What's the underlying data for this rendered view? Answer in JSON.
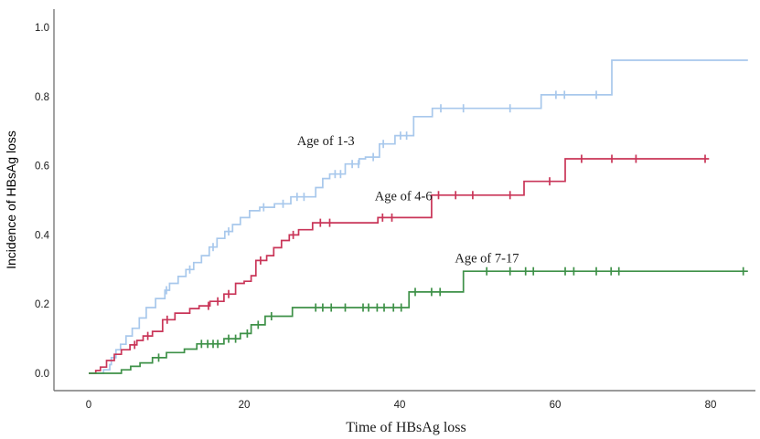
{
  "page": {
    "background": "#ffffff"
  },
  "chart_data": {
    "type": "line",
    "subtype": "kaplan_meier_step_cumulative_incidence",
    "title": "",
    "xlabel": "Time of HBsAg loss",
    "ylabel": "Incidence of HBsAg loss",
    "xlim": [
      -4.5,
      86
    ],
    "ylim": [
      -0.05,
      1.05
    ],
    "x_ticks": [
      0,
      20,
      40,
      60,
      80
    ],
    "y_ticks": [
      0.0,
      0.2,
      0.4,
      0.6,
      0.8,
      1.0
    ],
    "grid": false,
    "legend_position": "inline annotations beside curves",
    "axis_color": "#7a7a7a",
    "text_color": "#1a1a1a",
    "series": [
      {
        "name": "Age of 1-3",
        "annotation_label": "Age of 1-3",
        "color": "#a8c8ec",
        "annotation_at": [
          26.8,
          0.66
        ],
        "steps": [
          [
            0,
            0
          ],
          [
            1.9,
            0.01
          ],
          [
            2.7,
            0.025
          ],
          [
            2.9,
            0.045
          ],
          [
            3.5,
            0.068
          ],
          [
            4.1,
            0.084
          ],
          [
            4.8,
            0.108
          ],
          [
            5.6,
            0.13
          ],
          [
            6.5,
            0.16
          ],
          [
            7.4,
            0.19
          ],
          [
            8.6,
            0.216
          ],
          [
            9.8,
            0.24
          ],
          [
            10.4,
            0.26
          ],
          [
            11.5,
            0.28
          ],
          [
            12.5,
            0.3
          ],
          [
            13.5,
            0.32
          ],
          [
            14.5,
            0.34
          ],
          [
            15.5,
            0.365
          ],
          [
            16.5,
            0.39
          ],
          [
            17.5,
            0.41
          ],
          [
            18.5,
            0.43
          ],
          [
            19.5,
            0.45
          ],
          [
            20.7,
            0.47
          ],
          [
            22,
            0.48
          ],
          [
            23.9,
            0.49
          ],
          [
            26,
            0.51
          ],
          [
            29.2,
            0.537
          ],
          [
            30.1,
            0.563
          ],
          [
            31,
            0.576
          ],
          [
            33,
            0.605
          ],
          [
            34.8,
            0.62
          ],
          [
            35.6,
            0.625
          ],
          [
            37.4,
            0.663
          ],
          [
            39.4,
            0.687
          ],
          [
            41.8,
            0.742
          ],
          [
            44.2,
            0.766
          ],
          [
            58.2,
            0.805
          ],
          [
            67.3,
            0.905
          ],
          [
            84.8,
            0.905
          ]
        ],
        "censor_times": [
          10,
          13,
          16,
          18,
          22.5,
          25,
          26.8,
          27.7,
          31.7,
          32.4,
          33.9,
          34.7,
          36.6,
          37.9,
          40.1,
          40.9,
          45.3,
          48.2,
          54.2,
          60.1,
          61.2,
          65.3
        ]
      },
      {
        "name": "Age of 4-6",
        "annotation_label": "Age of 4-6",
        "color": "#c93558",
        "annotation_at": [
          36.8,
          0.5
        ],
        "steps": [
          [
            0,
            0
          ],
          [
            0.9,
            0.008
          ],
          [
            1.5,
            0.018
          ],
          [
            2.3,
            0.037
          ],
          [
            3.3,
            0.055
          ],
          [
            4.2,
            0.068
          ],
          [
            5.3,
            0.082
          ],
          [
            6.2,
            0.095
          ],
          [
            7,
            0.108
          ],
          [
            8.2,
            0.121
          ],
          [
            9.5,
            0.155
          ],
          [
            11.1,
            0.174
          ],
          [
            13,
            0.187
          ],
          [
            14.2,
            0.195
          ],
          [
            15.6,
            0.208
          ],
          [
            17.4,
            0.229
          ],
          [
            18.9,
            0.26
          ],
          [
            20,
            0.266
          ],
          [
            20.9,
            0.282
          ],
          [
            21.5,
            0.326
          ],
          [
            22.9,
            0.34
          ],
          [
            23.8,
            0.363
          ],
          [
            24.8,
            0.384
          ],
          [
            25.8,
            0.4
          ],
          [
            27,
            0.415
          ],
          [
            28.8,
            0.435
          ],
          [
            37.2,
            0.45
          ],
          [
            44.1,
            0.515
          ],
          [
            56,
            0.555
          ],
          [
            61.3,
            0.62
          ],
          [
            79.8,
            0.62
          ]
        ],
        "censor_times": [
          5.9,
          7.6,
          10.1,
          15.4,
          16.6,
          18,
          22.1,
          26.3,
          29.8,
          31,
          37.8,
          39,
          45,
          47.2,
          49.4,
          54.2,
          59.3,
          63.4,
          67.3,
          70.4,
          79.3
        ]
      },
      {
        "name": "Age of 7-17",
        "annotation_label": "Age of 7-17",
        "color": "#3e9148",
        "annotation_at": [
          47.1,
          0.32
        ],
        "steps": [
          [
            0,
            0
          ],
          [
            4.2,
            0.01
          ],
          [
            5.4,
            0.02
          ],
          [
            6.6,
            0.03
          ],
          [
            8.2,
            0.045
          ],
          [
            10,
            0.06
          ],
          [
            12.3,
            0.07
          ],
          [
            13.9,
            0.085
          ],
          [
            17.4,
            0.1
          ],
          [
            19.5,
            0.115
          ],
          [
            20.9,
            0.14
          ],
          [
            22.7,
            0.165
          ],
          [
            26.2,
            0.19
          ],
          [
            41.2,
            0.235
          ],
          [
            48.2,
            0.295
          ],
          [
            84.8,
            0.295
          ]
        ],
        "censor_times": [
          9,
          14.5,
          15.3,
          16,
          16.6,
          18,
          18.9,
          20.4,
          21.8,
          23.5,
          29.2,
          30.1,
          31.2,
          33,
          35.3,
          36,
          37.1,
          38,
          39.2,
          40.2,
          42,
          44.1,
          45.2,
          51.2,
          54.2,
          56.2,
          57.2,
          61.3,
          62.4,
          65.3,
          67.2,
          68.2,
          84.2
        ]
      }
    ]
  }
}
